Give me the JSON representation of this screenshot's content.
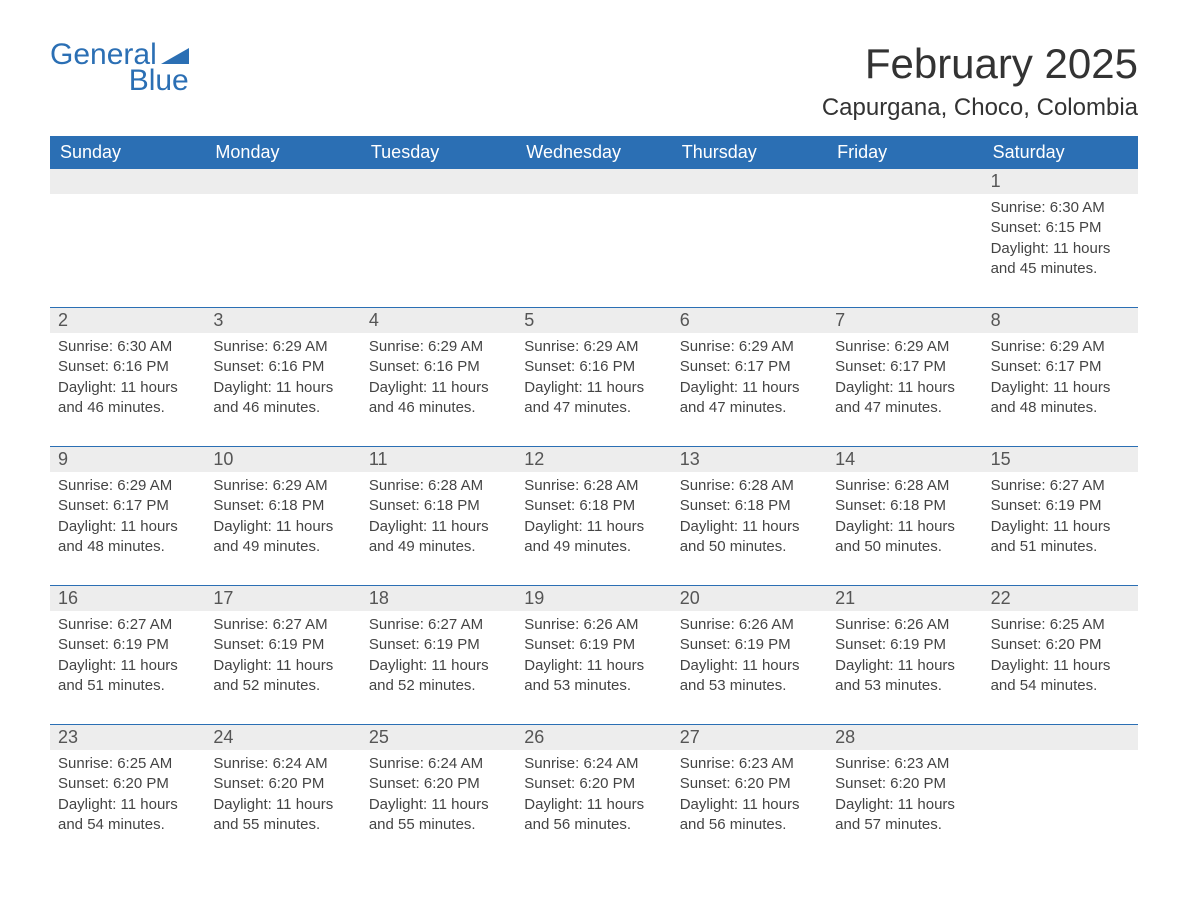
{
  "logo": {
    "text1": "General",
    "text2": "Blue"
  },
  "title": "February 2025",
  "location": "Capurgana, Choco, Colombia",
  "colors": {
    "header_bg": "#2b6fb4",
    "header_text": "#ffffff",
    "daynum_bg": "#ededed",
    "text": "#444444",
    "border": "#2b6fb4"
  },
  "weekdays": [
    "Sunday",
    "Monday",
    "Tuesday",
    "Wednesday",
    "Thursday",
    "Friday",
    "Saturday"
  ],
  "weeks": [
    [
      null,
      null,
      null,
      null,
      null,
      null,
      {
        "n": "1",
        "sr": "Sunrise: 6:30 AM",
        "ss": "Sunset: 6:15 PM",
        "dl1": "Daylight: 11 hours",
        "dl2": "and 45 minutes."
      }
    ],
    [
      {
        "n": "2",
        "sr": "Sunrise: 6:30 AM",
        "ss": "Sunset: 6:16 PM",
        "dl1": "Daylight: 11 hours",
        "dl2": "and 46 minutes."
      },
      {
        "n": "3",
        "sr": "Sunrise: 6:29 AM",
        "ss": "Sunset: 6:16 PM",
        "dl1": "Daylight: 11 hours",
        "dl2": "and 46 minutes."
      },
      {
        "n": "4",
        "sr": "Sunrise: 6:29 AM",
        "ss": "Sunset: 6:16 PM",
        "dl1": "Daylight: 11 hours",
        "dl2": "and 46 minutes."
      },
      {
        "n": "5",
        "sr": "Sunrise: 6:29 AM",
        "ss": "Sunset: 6:16 PM",
        "dl1": "Daylight: 11 hours",
        "dl2": "and 47 minutes."
      },
      {
        "n": "6",
        "sr": "Sunrise: 6:29 AM",
        "ss": "Sunset: 6:17 PM",
        "dl1": "Daylight: 11 hours",
        "dl2": "and 47 minutes."
      },
      {
        "n": "7",
        "sr": "Sunrise: 6:29 AM",
        "ss": "Sunset: 6:17 PM",
        "dl1": "Daylight: 11 hours",
        "dl2": "and 47 minutes."
      },
      {
        "n": "8",
        "sr": "Sunrise: 6:29 AM",
        "ss": "Sunset: 6:17 PM",
        "dl1": "Daylight: 11 hours",
        "dl2": "and 48 minutes."
      }
    ],
    [
      {
        "n": "9",
        "sr": "Sunrise: 6:29 AM",
        "ss": "Sunset: 6:17 PM",
        "dl1": "Daylight: 11 hours",
        "dl2": "and 48 minutes."
      },
      {
        "n": "10",
        "sr": "Sunrise: 6:29 AM",
        "ss": "Sunset: 6:18 PM",
        "dl1": "Daylight: 11 hours",
        "dl2": "and 49 minutes."
      },
      {
        "n": "11",
        "sr": "Sunrise: 6:28 AM",
        "ss": "Sunset: 6:18 PM",
        "dl1": "Daylight: 11 hours",
        "dl2": "and 49 minutes."
      },
      {
        "n": "12",
        "sr": "Sunrise: 6:28 AM",
        "ss": "Sunset: 6:18 PM",
        "dl1": "Daylight: 11 hours",
        "dl2": "and 49 minutes."
      },
      {
        "n": "13",
        "sr": "Sunrise: 6:28 AM",
        "ss": "Sunset: 6:18 PM",
        "dl1": "Daylight: 11 hours",
        "dl2": "and 50 minutes."
      },
      {
        "n": "14",
        "sr": "Sunrise: 6:28 AM",
        "ss": "Sunset: 6:18 PM",
        "dl1": "Daylight: 11 hours",
        "dl2": "and 50 minutes."
      },
      {
        "n": "15",
        "sr": "Sunrise: 6:27 AM",
        "ss": "Sunset: 6:19 PM",
        "dl1": "Daylight: 11 hours",
        "dl2": "and 51 minutes."
      }
    ],
    [
      {
        "n": "16",
        "sr": "Sunrise: 6:27 AM",
        "ss": "Sunset: 6:19 PM",
        "dl1": "Daylight: 11 hours",
        "dl2": "and 51 minutes."
      },
      {
        "n": "17",
        "sr": "Sunrise: 6:27 AM",
        "ss": "Sunset: 6:19 PM",
        "dl1": "Daylight: 11 hours",
        "dl2": "and 52 minutes."
      },
      {
        "n": "18",
        "sr": "Sunrise: 6:27 AM",
        "ss": "Sunset: 6:19 PM",
        "dl1": "Daylight: 11 hours",
        "dl2": "and 52 minutes."
      },
      {
        "n": "19",
        "sr": "Sunrise: 6:26 AM",
        "ss": "Sunset: 6:19 PM",
        "dl1": "Daylight: 11 hours",
        "dl2": "and 53 minutes."
      },
      {
        "n": "20",
        "sr": "Sunrise: 6:26 AM",
        "ss": "Sunset: 6:19 PM",
        "dl1": "Daylight: 11 hours",
        "dl2": "and 53 minutes."
      },
      {
        "n": "21",
        "sr": "Sunrise: 6:26 AM",
        "ss": "Sunset: 6:19 PM",
        "dl1": "Daylight: 11 hours",
        "dl2": "and 53 minutes."
      },
      {
        "n": "22",
        "sr": "Sunrise: 6:25 AM",
        "ss": "Sunset: 6:20 PM",
        "dl1": "Daylight: 11 hours",
        "dl2": "and 54 minutes."
      }
    ],
    [
      {
        "n": "23",
        "sr": "Sunrise: 6:25 AM",
        "ss": "Sunset: 6:20 PM",
        "dl1": "Daylight: 11 hours",
        "dl2": "and 54 minutes."
      },
      {
        "n": "24",
        "sr": "Sunrise: 6:24 AM",
        "ss": "Sunset: 6:20 PM",
        "dl1": "Daylight: 11 hours",
        "dl2": "and 55 minutes."
      },
      {
        "n": "25",
        "sr": "Sunrise: 6:24 AM",
        "ss": "Sunset: 6:20 PM",
        "dl1": "Daylight: 11 hours",
        "dl2": "and 55 minutes."
      },
      {
        "n": "26",
        "sr": "Sunrise: 6:24 AM",
        "ss": "Sunset: 6:20 PM",
        "dl1": "Daylight: 11 hours",
        "dl2": "and 56 minutes."
      },
      {
        "n": "27",
        "sr": "Sunrise: 6:23 AM",
        "ss": "Sunset: 6:20 PM",
        "dl1": "Daylight: 11 hours",
        "dl2": "and 56 minutes."
      },
      {
        "n": "28",
        "sr": "Sunrise: 6:23 AM",
        "ss": "Sunset: 6:20 PM",
        "dl1": "Daylight: 11 hours",
        "dl2": "and 57 minutes."
      },
      null
    ]
  ]
}
